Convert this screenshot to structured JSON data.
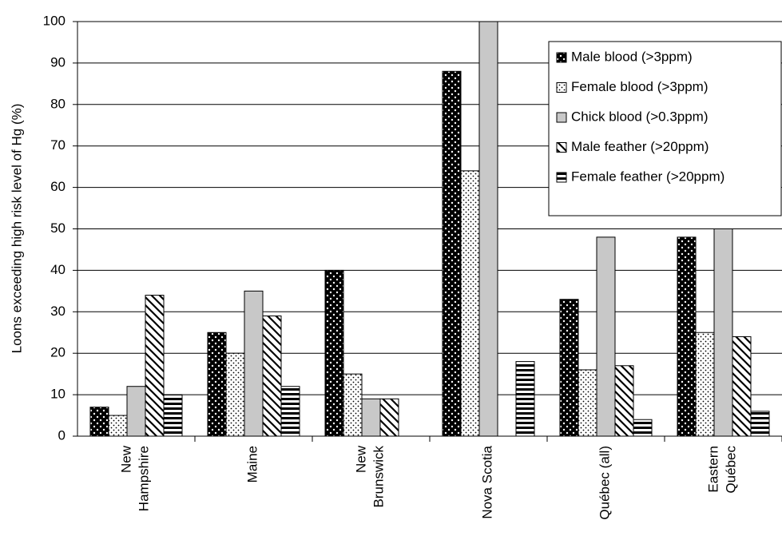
{
  "chart_data": {
    "type": "bar",
    "y_label": "Loons exceeding high risk level of Hg (%)",
    "categories": [
      "New\nHampshire",
      "Maine",
      "New\nBrunswick",
      "Nova Scotia",
      "Québec (all)",
      "Eastern\nQuébec"
    ],
    "series": [
      {
        "name": "Male blood (>3ppm)",
        "color": "#000000",
        "pattern": "dots-dark",
        "values": [
          7,
          25,
          40,
          88,
          33,
          48
        ]
      },
      {
        "name": "Female blood (>3ppm)",
        "color": "#ffffff",
        "pattern": "dots-light",
        "values": [
          5,
          20,
          15,
          64,
          16,
          25
        ]
      },
      {
        "name": "Chick blood (>0.3ppm)",
        "color": "#c8c8c8",
        "pattern": "solid",
        "values": [
          12,
          35,
          9,
          100,
          48,
          50
        ]
      },
      {
        "name": "Male feather (>20ppm)",
        "color": "#ffffff",
        "pattern": "diagonal",
        "values": [
          34,
          29,
          9,
          null,
          17,
          24
        ]
      },
      {
        "name": "Female feather (>20ppm)",
        "color": "#ffffff",
        "pattern": "horizontal",
        "values": [
          10,
          12,
          null,
          18,
          4,
          6
        ]
      }
    ],
    "ylim": [
      0,
      100
    ],
    "yticks": [
      0,
      10,
      20,
      30,
      40,
      50,
      60,
      70,
      80,
      90,
      100
    ],
    "grid": true,
    "legend": "upper right"
  }
}
